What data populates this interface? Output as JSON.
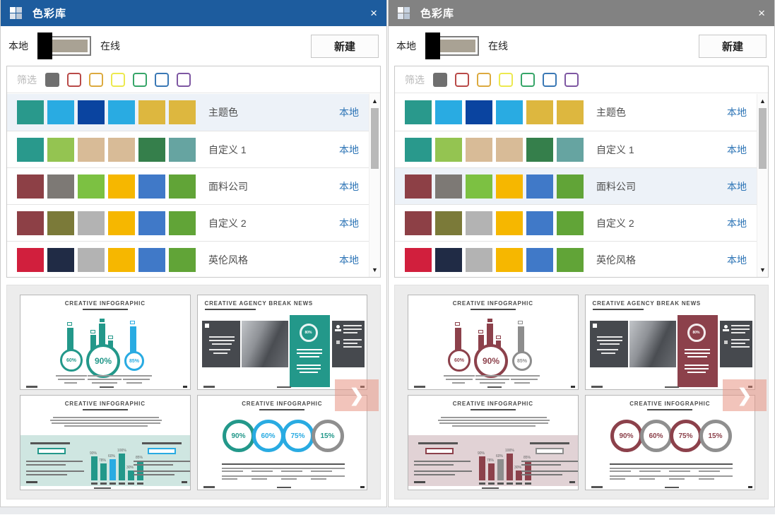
{
  "page": {
    "bottom_strip_color": "#e9ebee"
  },
  "panels": [
    {
      "title": "色彩库",
      "close_label": "×",
      "titlebar_color": "#1d5c9e",
      "toggle": {
        "left_label": "本地",
        "right_label": "在线",
        "selected": "local"
      },
      "new_button_label": "新建",
      "filter": {
        "label": "筛选",
        "filled_chip": "#6f6f6f",
        "chips": [
          "#b94a48",
          "#dcaa3f",
          "#ece94f",
          "#36a568",
          "#3a78b5",
          "#7e57a2"
        ]
      },
      "palettes": [
        {
          "name": "主题色",
          "badge": "本地",
          "selected": true,
          "colors": [
            "#29998c",
            "#29abe2",
            "#0a44a0",
            "#29abe2",
            "#ddb73f",
            "#ddb73f"
          ]
        },
        {
          "name": "自定义 1",
          "badge": "本地",
          "selected": false,
          "colors": [
            "#29998c",
            "#94c451",
            "#d8bb97",
            "#d8bb97",
            "#357f4b",
            "#66a4a1"
          ]
        },
        {
          "name": "面料公司",
          "badge": "本地",
          "selected": false,
          "colors": [
            "#8d4046",
            "#7d7975",
            "#7cc142",
            "#f6b700",
            "#4079c8",
            "#61a437"
          ]
        },
        {
          "name": "自定义 2",
          "badge": "本地",
          "selected": false,
          "colors": [
            "#8d4046",
            "#7b7a39",
            "#b3b3b3",
            "#f6b700",
            "#4079c8",
            "#61a437"
          ]
        },
        {
          "name": "英伦风格",
          "badge": "本地",
          "selected": false,
          "colors": [
            "#d11f3d",
            "#202b45",
            "#b3b3b3",
            "#f6b700",
            "#4079c8",
            "#61a437"
          ]
        }
      ],
      "scrollbar": {
        "up": "▲",
        "down": "▼"
      },
      "preview": {
        "accent": "#23988a",
        "alt": "#29abe2",
        "band": "#cfe6e1",
        "ring_colors": [
          "#23988a",
          "#29abe2",
          "#29abe2",
          "#8f8f8f"
        ],
        "ring_text_colors": [
          "#23988a",
          "#29abe2",
          "#29abe2",
          "#23988a"
        ],
        "next_arrow": "❯",
        "next_arrow_color": "rgba(232,148,132,0.55)",
        "slides": [
          {
            "type": "bars_circles",
            "title": "CREATIVE INFOGRAPHIC",
            "circle_values": [
              "60%",
              "90%",
              "85%"
            ]
          },
          {
            "type": "agency",
            "title": "CREATIVE AGENCY BREAK NEWS",
            "ring_value": "80%"
          },
          {
            "type": "band_bars",
            "title": "CREATIVE INFOGRAPHIC",
            "bar_values": [
              34,
              24,
              30,
              38,
              14,
              28
            ],
            "bar_labels": [
              "90%",
              "78%",
              "60%",
              "100%",
              "30%",
              "85%"
            ]
          },
          {
            "type": "rings",
            "title": "CREATIVE INFOGRAPHIC",
            "ring_values": [
              "90%",
              "60%",
              "75%",
              "15%"
            ]
          }
        ]
      }
    },
    {
      "title": "色彩库",
      "close_label": "×",
      "titlebar_color": "#828282",
      "toggle": {
        "left_label": "本地",
        "right_label": "在线",
        "selected": "local"
      },
      "new_button_label": "新建",
      "filter": {
        "label": "筛选",
        "filled_chip": "#6f6f6f",
        "chips": [
          "#b94a48",
          "#dcaa3f",
          "#ece94f",
          "#36a568",
          "#3a78b5",
          "#7e57a2"
        ]
      },
      "palettes": [
        {
          "name": "主题色",
          "badge": "本地",
          "selected": false,
          "colors": [
            "#29998c",
            "#29abe2",
            "#0a44a0",
            "#29abe2",
            "#ddb73f",
            "#ddb73f"
          ]
        },
        {
          "name": "自定义 1",
          "badge": "本地",
          "selected": false,
          "colors": [
            "#29998c",
            "#94c451",
            "#d8bb97",
            "#d8bb97",
            "#357f4b",
            "#66a4a1"
          ]
        },
        {
          "name": "面料公司",
          "badge": "本地",
          "selected": true,
          "colors": [
            "#8d4046",
            "#7d7975",
            "#7cc142",
            "#f6b700",
            "#4079c8",
            "#61a437"
          ]
        },
        {
          "name": "自定义 2",
          "badge": "本地",
          "selected": false,
          "colors": [
            "#8d4046",
            "#7b7a39",
            "#b3b3b3",
            "#f6b700",
            "#4079c8",
            "#61a437"
          ]
        },
        {
          "name": "英伦风格",
          "badge": "本地",
          "selected": false,
          "colors": [
            "#d11f3d",
            "#202b45",
            "#b3b3b3",
            "#f6b700",
            "#4079c8",
            "#61a437"
          ]
        }
      ],
      "scrollbar": {
        "up": "▲",
        "down": "▼"
      },
      "preview": {
        "accent": "#8c414b",
        "alt": "#8d8d8d",
        "band": "#e1d2d5",
        "ring_colors": [
          "#8c414b",
          "#8f8f8f",
          "#8c414b",
          "#8f8f8f"
        ],
        "ring_text_colors": [
          "#8c414b",
          "#8c414b",
          "#8c414b",
          "#8c414b"
        ],
        "next_arrow": "❯",
        "next_arrow_color": "rgba(232,148,132,0.55)",
        "slides": [
          {
            "type": "bars_circles",
            "title": "CREATIVE INFOGRAPHIC",
            "circle_values": [
              "60%",
              "90%",
              "85%"
            ]
          },
          {
            "type": "agency",
            "title": "CREATIVE AGENCY BREAK NEWS",
            "ring_value": "80%"
          },
          {
            "type": "band_bars",
            "title": "CREATIVE INFOGRAPHIC",
            "bar_values": [
              34,
              24,
              30,
              38,
              14,
              28
            ],
            "bar_labels": [
              "90%",
              "78%",
              "60%",
              "100%",
              "30%",
              "85%"
            ]
          },
          {
            "type": "rings",
            "title": "CREATIVE INFOGRAPHIC",
            "ring_values": [
              "90%",
              "60%",
              "75%",
              "15%"
            ]
          }
        ]
      }
    }
  ]
}
